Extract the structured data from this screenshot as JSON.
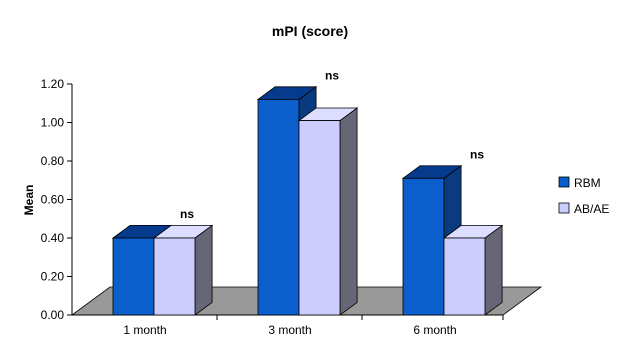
{
  "chart_data": {
    "type": "bar",
    "title": "mPI (score)",
    "xlabel": "",
    "ylabel": "Mean",
    "categories": [
      "1 month",
      "3 month",
      "6 month"
    ],
    "series": [
      {
        "name": "RBM",
        "values": [
          0.4,
          1.12,
          0.71
        ],
        "color": "#0a5fcc"
      },
      {
        "name": "AB/AE",
        "values": [
          0.4,
          1.01,
          0.4
        ],
        "color": "#ccccff"
      }
    ],
    "ylim": [
      0,
      1.2
    ],
    "yticks": [
      "0.00",
      "0.20",
      "0.40",
      "0.60",
      "0.80",
      "1.00",
      "1.20"
    ],
    "annotations": [
      "ns",
      "ns",
      "ns"
    ],
    "legend": "right",
    "grid": false,
    "floor_color": "#999999"
  }
}
